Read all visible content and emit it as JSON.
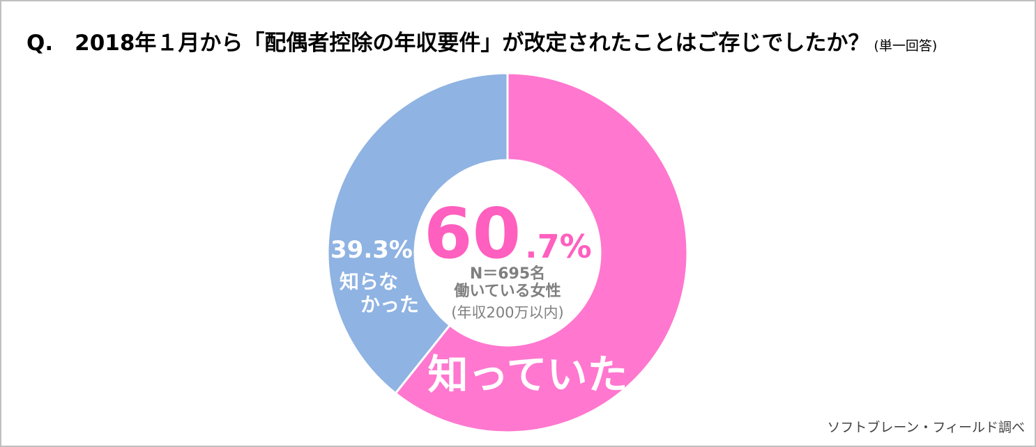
{
  "chart_data": {
    "type": "donut",
    "title": "Q.　2018年１月から「配偶者控除の年収要件」が改定されたことはご存じでしたか？",
    "title_note": "(単一回答)",
    "categories": [
      "知っていた",
      "知らなかった"
    ],
    "values": [
      60.7,
      39.3
    ],
    "value_labels": [
      "60.7%",
      "39.3%"
    ],
    "colors": [
      "#ff77cf",
      "#8fb3e2"
    ],
    "center_text": [
      "N＝695名",
      "働いている女性",
      "(年収200万以内)"
    ],
    "source": "ソフトブレーン・フィールド調べ"
  }
}
